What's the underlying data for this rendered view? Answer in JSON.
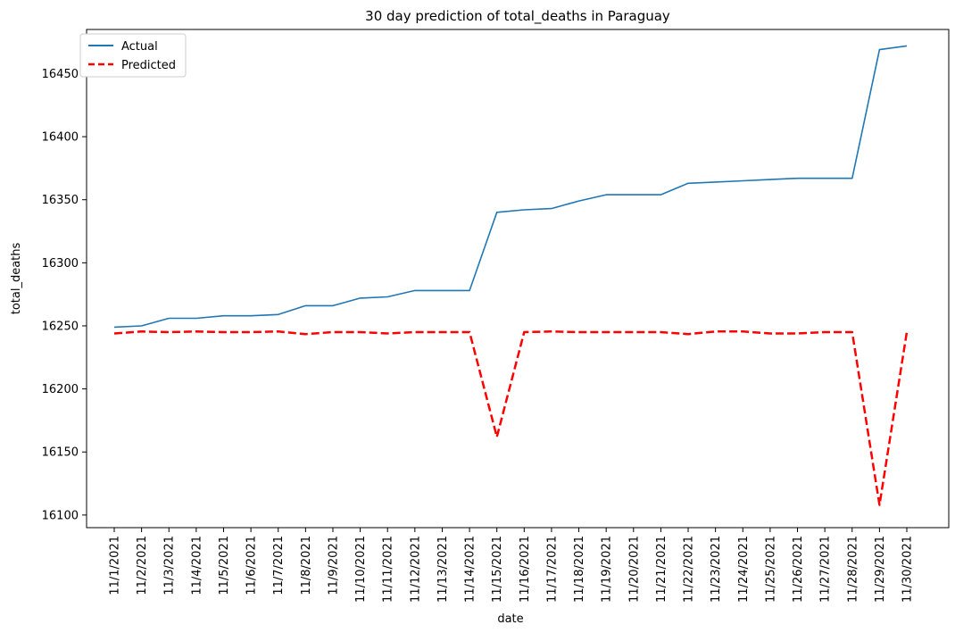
{
  "chart_data": {
    "type": "line",
    "title": "30 day prediction of total_deaths in Paraguay",
    "xlabel": "date",
    "ylabel": "total_deaths",
    "categories": [
      "11/1/2021",
      "11/2/2021",
      "11/3/2021",
      "11/4/2021",
      "11/5/2021",
      "11/6/2021",
      "11/7/2021",
      "11/8/2021",
      "11/9/2021",
      "11/10/2021",
      "11/11/2021",
      "11/12/2021",
      "11/13/2021",
      "11/14/2021",
      "11/15/2021",
      "11/16/2021",
      "11/17/2021",
      "11/18/2021",
      "11/19/2021",
      "11/20/2021",
      "11/21/2021",
      "11/22/2021",
      "11/23/2021",
      "11/24/2021",
      "11/25/2021",
      "11/26/2021",
      "11/27/2021",
      "11/28/2021",
      "11/29/2021",
      "11/30/2021"
    ],
    "yticks": [
      16100,
      16150,
      16200,
      16250,
      16300,
      16350,
      16400,
      16450
    ],
    "ylim": [
      16090,
      16485
    ],
    "legend_position": "top-left",
    "grid": false,
    "series": [
      {
        "name": "Actual",
        "color": "#1f77b4",
        "style": "solid",
        "values": [
          16249,
          16250,
          16256,
          16256,
          16258,
          16258,
          16259,
          16266,
          16266,
          16272,
          16273,
          16278,
          16278,
          16278,
          16340,
          16342,
          16343,
          16349,
          16354,
          16354,
          16354,
          16363,
          16364,
          16365,
          16366,
          16367,
          16367,
          16367,
          16469,
          16472
        ]
      },
      {
        "name": "Predicted",
        "color": "#ff0000",
        "style": "dashed",
        "values": [
          16244,
          16245.5,
          16245,
          16245.5,
          16245,
          16245,
          16245.5,
          16243.5,
          16245,
          16245,
          16244,
          16245,
          16245,
          16245,
          16162,
          16245,
          16245.5,
          16245,
          16245,
          16245,
          16245,
          16243.5,
          16245.5,
          16245.5,
          16244,
          16244,
          16245,
          16245,
          16108,
          16245
        ]
      }
    ]
  }
}
